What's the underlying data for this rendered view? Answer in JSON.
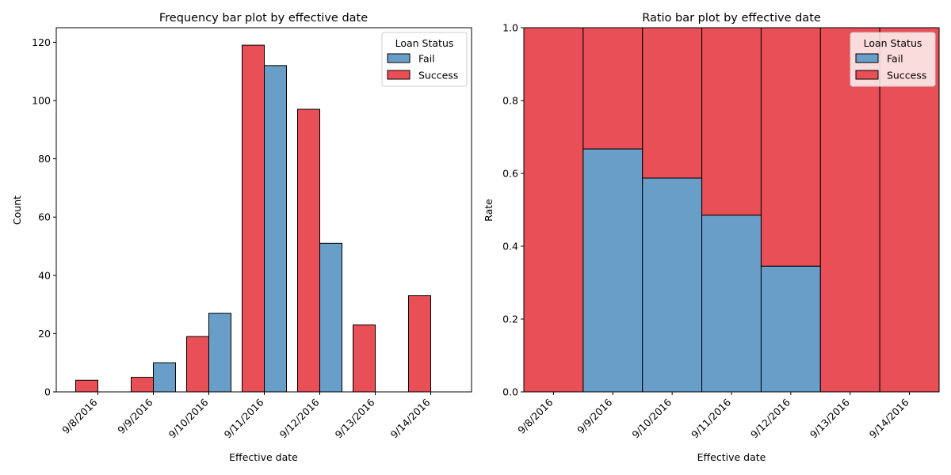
{
  "chart_data": [
    {
      "type": "bar",
      "title": "Frequency bar plot by effective date",
      "xlabel": "Effective date",
      "ylabel": "Count",
      "ylim": [
        0,
        125
      ],
      "yticks": [
        0,
        20,
        40,
        60,
        80,
        100,
        120
      ],
      "categories": [
        "9/8/2016",
        "9/9/2016",
        "9/10/2016",
        "9/11/2016",
        "9/12/2016",
        "9/13/2016",
        "9/14/2016"
      ],
      "series": [
        {
          "name": "Success",
          "values": [
            4,
            5,
            19,
            119,
            97,
            23,
            33
          ]
        },
        {
          "name": "Fail",
          "values": [
            0,
            10,
            27,
            112,
            51,
            0,
            0
          ]
        }
      ],
      "legend": {
        "title": "Loan Status",
        "placement": "top-right",
        "entries": [
          "Fail",
          "Success"
        ]
      },
      "grid": false
    },
    {
      "type": "bar",
      "stacked": true,
      "title": "Ratio bar plot by effective date",
      "xlabel": "Effective date",
      "ylabel": "Rate",
      "ylim": [
        0,
        1
      ],
      "yticks": [
        "0.0",
        "0.2",
        "0.4",
        "0.6",
        "0.8",
        "1.0"
      ],
      "categories": [
        "9/8/2016",
        "9/9/2016",
        "9/10/2016",
        "9/11/2016",
        "9/12/2016",
        "9/13/2016",
        "9/14/2016"
      ],
      "series": [
        {
          "name": "Fail",
          "values": [
            0,
            0.667,
            0.587,
            0.485,
            0.345,
            0,
            0
          ]
        },
        {
          "name": "Success",
          "values": [
            1,
            0.333,
            0.413,
            0.515,
            0.655,
            1,
            1
          ]
        }
      ],
      "legend": {
        "title": "Loan Status",
        "placement": "top-right",
        "entries": [
          "Fail",
          "Success"
        ]
      },
      "grid": false
    }
  ],
  "colors": {
    "Fail": "#699ec9",
    "Success": "#e84f56",
    "edge": "#000000"
  }
}
